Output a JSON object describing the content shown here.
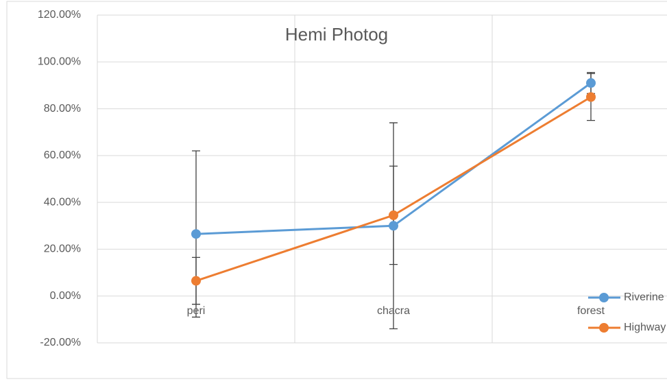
{
  "chart_data": {
    "type": "line",
    "title": "Hemi Photog",
    "categories": [
      "peri",
      "chacra",
      "forest"
    ],
    "series": [
      {
        "name": "Riverine",
        "color": "#5b9bd5",
        "values": [
          26.5,
          30,
          91
        ],
        "errors": [
          35.5,
          44,
          4.5
        ]
      },
      {
        "name": "Highway",
        "color": "#ed7d31",
        "values": [
          6.5,
          34.5,
          85
        ],
        "errors": [
          10,
          21,
          10
        ]
      }
    ],
    "ylim": [
      -20,
      120
    ],
    "yticks": [
      {
        "value": -20,
        "label": "-20.00%"
      },
      {
        "value": 0,
        "label": "0.00%"
      },
      {
        "value": 20,
        "label": "20.00%"
      },
      {
        "value": 40,
        "label": "40.00%"
      },
      {
        "value": 60,
        "label": "60.00%"
      },
      {
        "value": 80,
        "label": "80.00%"
      },
      {
        "value": 100,
        "label": "100.00%"
      },
      {
        "value": 120,
        "label": "120.00%"
      }
    ],
    "grid": true,
    "legend": "right"
  }
}
